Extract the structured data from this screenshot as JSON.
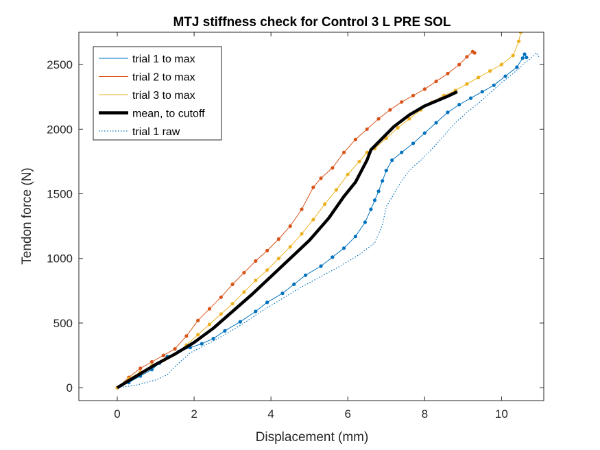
{
  "chart_data": {
    "type": "line",
    "title": "MTJ stiffness check for Control 3 L PRE SOL",
    "xlabel": "Displacement (mm)",
    "ylabel": "Tendon force (N)",
    "xlim": [
      -1,
      11.1
    ],
    "ylim": [
      -100,
      2750
    ],
    "xticks": [
      0,
      2,
      4,
      6,
      8,
      10
    ],
    "yticks": [
      0,
      500,
      1000,
      1500,
      2000,
      2500
    ],
    "xtick_labels": [
      "0",
      "2",
      "4",
      "6",
      "8",
      "10"
    ],
    "ytick_labels": [
      "0",
      "500",
      "1000",
      "1500",
      "2000",
      "2500"
    ],
    "grid": false,
    "legend_position": "top-left",
    "series": [
      {
        "name": "trial 1 to max",
        "color": "#0072BD",
        "style": "solid",
        "markers": true,
        "x": [
          0,
          0.3,
          0.6,
          0.9,
          1.1,
          1.3,
          1.6,
          1.9,
          2.2,
          2.5,
          2.8,
          3.2,
          3.6,
          3.9,
          4.3,
          4.6,
          4.9,
          5.3,
          5.6,
          5.9,
          6.2,
          6.45,
          6.6,
          6.7,
          6.8,
          6.9,
          7.0,
          7.15,
          7.4,
          7.7,
          8.0,
          8.3,
          8.6,
          8.9,
          9.2,
          9.5,
          9.8,
          10.1,
          10.4,
          10.55,
          10.6,
          10.65
        ],
        "y": [
          0,
          40,
          90,
          140,
          190,
          240,
          280,
          310,
          340,
          380,
          440,
          510,
          590,
          660,
          730,
          800,
          870,
          940,
          1010,
          1080,
          1170,
          1280,
          1380,
          1450,
          1520,
          1600,
          1680,
          1760,
          1820,
          1890,
          1970,
          2050,
          2130,
          2190,
          2240,
          2290,
          2340,
          2410,
          2480,
          2550,
          2580,
          2555
        ]
      },
      {
        "name": "trial 2 to max",
        "color": "#D95319",
        "style": "solid",
        "markers": true,
        "x": [
          0,
          0.3,
          0.6,
          0.9,
          1.2,
          1.5,
          1.8,
          2.1,
          2.4,
          2.7,
          3.0,
          3.3,
          3.6,
          3.9,
          4.2,
          4.5,
          4.8,
          5.1,
          5.3,
          5.6,
          5.9,
          6.2,
          6.5,
          6.8,
          7.1,
          7.4,
          7.7,
          8.0,
          8.3,
          8.6,
          8.9,
          9.1,
          9.25,
          9.3
        ],
        "y": [
          0,
          80,
          150,
          200,
          250,
          300,
          400,
          520,
          610,
          700,
          800,
          890,
          980,
          1060,
          1150,
          1250,
          1380,
          1550,
          1620,
          1700,
          1820,
          1920,
          2000,
          2080,
          2150,
          2210,
          2260,
          2310,
          2370,
          2430,
          2500,
          2560,
          2600,
          2590
        ]
      },
      {
        "name": "trial 3 to max",
        "color": "#EDB120",
        "style": "solid",
        "markers": true,
        "x": [
          0,
          0.3,
          0.6,
          0.9,
          1.2,
          1.5,
          1.8,
          2.1,
          2.4,
          2.7,
          3.0,
          3.3,
          3.6,
          3.9,
          4.2,
          4.5,
          4.8,
          5.1,
          5.4,
          5.7,
          6.0,
          6.3,
          6.5,
          6.7,
          7.0,
          7.3,
          7.6,
          7.9,
          8.2,
          8.5,
          8.8,
          9.1,
          9.4,
          9.7,
          10.0,
          10.3,
          10.45,
          10.5
        ],
        "y": [
          0,
          70,
          120,
          170,
          210,
          260,
          330,
          410,
          490,
          570,
          650,
          740,
          830,
          910,
          1000,
          1090,
          1190,
          1300,
          1420,
          1530,
          1650,
          1750,
          1820,
          1850,
          1930,
          2010,
          2080,
          2150,
          2210,
          2260,
          2300,
          2350,
          2400,
          2450,
          2500,
          2570,
          2680,
          2750
        ]
      },
      {
        "name": "mean, to cutoff",
        "color": "#000000",
        "style": "thick",
        "markers": false,
        "x": [
          0,
          0.5,
          1.0,
          1.5,
          2.0,
          2.5,
          3.0,
          3.5,
          4.0,
          4.5,
          5.0,
          5.5,
          5.9,
          6.2,
          6.5,
          6.6,
          6.9,
          7.2,
          7.6,
          8.0,
          8.4,
          8.6,
          8.85
        ],
        "y": [
          0,
          90,
          180,
          260,
          350,
          460,
          590,
          720,
          860,
          1000,
          1140,
          1310,
          1480,
          1590,
          1760,
          1840,
          1930,
          2020,
          2110,
          2180,
          2230,
          2255,
          2290
        ]
      },
      {
        "name": "trial 1 raw",
        "color": "#0072BD",
        "style": "dotted",
        "markers": false,
        "x": [
          0,
          0.5,
          1.0,
          1.3,
          1.6,
          1.9,
          2.3,
          2.8,
          3.3,
          3.8,
          4.3,
          4.8,
          5.3,
          5.8,
          6.3,
          6.7,
          6.9,
          7.0,
          7.2,
          7.4,
          7.6,
          7.9,
          8.2,
          8.5,
          8.8,
          9.1,
          9.4,
          9.7,
          10.0,
          10.3,
          10.6,
          10.8,
          10.9,
          11.0
        ],
        "y": [
          0,
          20,
          60,
          100,
          190,
          270,
          330,
          410,
          500,
          600,
          690,
          780,
          860,
          940,
          1030,
          1120,
          1260,
          1400,
          1500,
          1600,
          1680,
          1760,
          1850,
          1950,
          2050,
          2130,
          2200,
          2280,
          2360,
          2430,
          2510,
          2560,
          2590,
          2550
        ]
      }
    ]
  }
}
